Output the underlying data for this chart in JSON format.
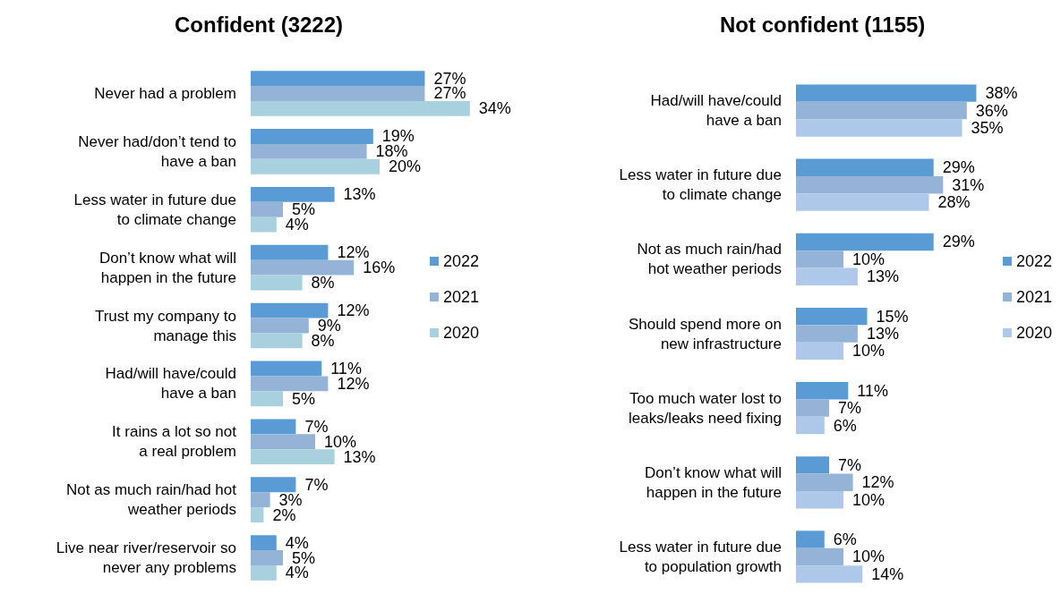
{
  "chart_data": [
    {
      "type": "bar",
      "orientation": "horizontal",
      "title": "Confident (3222)",
      "categories": [
        "Never had a problem",
        "Never had/don’t tend to\nhave a ban",
        "Less water in future due\nto climate change",
        "Don’t know what will\nhappen in the future",
        "Trust my company to\nmanage this",
        "Had/will have/could\nhave a ban",
        "It rains a lot so not\na real problem",
        "Not as much rain/had hot\nweather periods",
        "Live near river/reservoir so\nnever any problems"
      ],
      "series": [
        {
          "name": "2022",
          "color": "#5b9bd5",
          "values": [
            27,
            19,
            13,
            12,
            12,
            11,
            7,
            7,
            4
          ],
          "value_labels": [
            "27%",
            "19%",
            "13%",
            "12%",
            "12%",
            "11%",
            "7%",
            "7%",
            "4%"
          ]
        },
        {
          "name": "2021",
          "color": "#95b3d7",
          "values": [
            27,
            18,
            5,
            16,
            9,
            12,
            10,
            3,
            5
          ],
          "value_labels": [
            "27%",
            "18%",
            "5%",
            "16%",
            "9%",
            "12%",
            "10%",
            "3%",
            "5%"
          ]
        },
        {
          "name": "2020",
          "color": "#a9d0de",
          "values": [
            34,
            20,
            4,
            8,
            8,
            5,
            13,
            2,
            4
          ],
          "value_labels": [
            "34%",
            "20%",
            "4%",
            "8%",
            "8%",
            "5%",
            "13%",
            "2%",
            "4%"
          ]
        }
      ],
      "legend": "right",
      "tick_labels": "y"
    },
    {
      "type": "bar",
      "orientation": "horizontal",
      "title": "Not confident (1155)",
      "categories": [
        "Had/will have/could\nhave a ban",
        "Less water in future due\nto climate change",
        "Not as much rain/had\nhot weather periods",
        "Should spend more on\nnew infrastructure",
        "Too much water lost to\nleaks/leaks need fixing",
        "Don’t know what will\nhappen in the future",
        "Less water in future due\nto population growth"
      ],
      "series": [
        {
          "name": "2022",
          "color": "#5b9bd5",
          "values": [
            38,
            29,
            29,
            15,
            11,
            7,
            6
          ],
          "value_labels": [
            "38%",
            "29%",
            "29%",
            "15%",
            "11%",
            "7%",
            "6%"
          ]
        },
        {
          "name": "2021",
          "color": "#95b3d7",
          "values": [
            36,
            31,
            10,
            13,
            7,
            12,
            10
          ],
          "value_labels": [
            "36%",
            "31%",
            "10%",
            "13%",
            "7%",
            "12%",
            "10%"
          ]
        },
        {
          "name": "2020",
          "color": "#adc8e8",
          "values": [
            35,
            28,
            13,
            10,
            6,
            10,
            14
          ],
          "value_labels": [
            "35%",
            "28%",
            "13%",
            "10%",
            "6%",
            "10%",
            "14%"
          ]
        }
      ],
      "legend": "right",
      "tick_labels": "y"
    }
  ]
}
